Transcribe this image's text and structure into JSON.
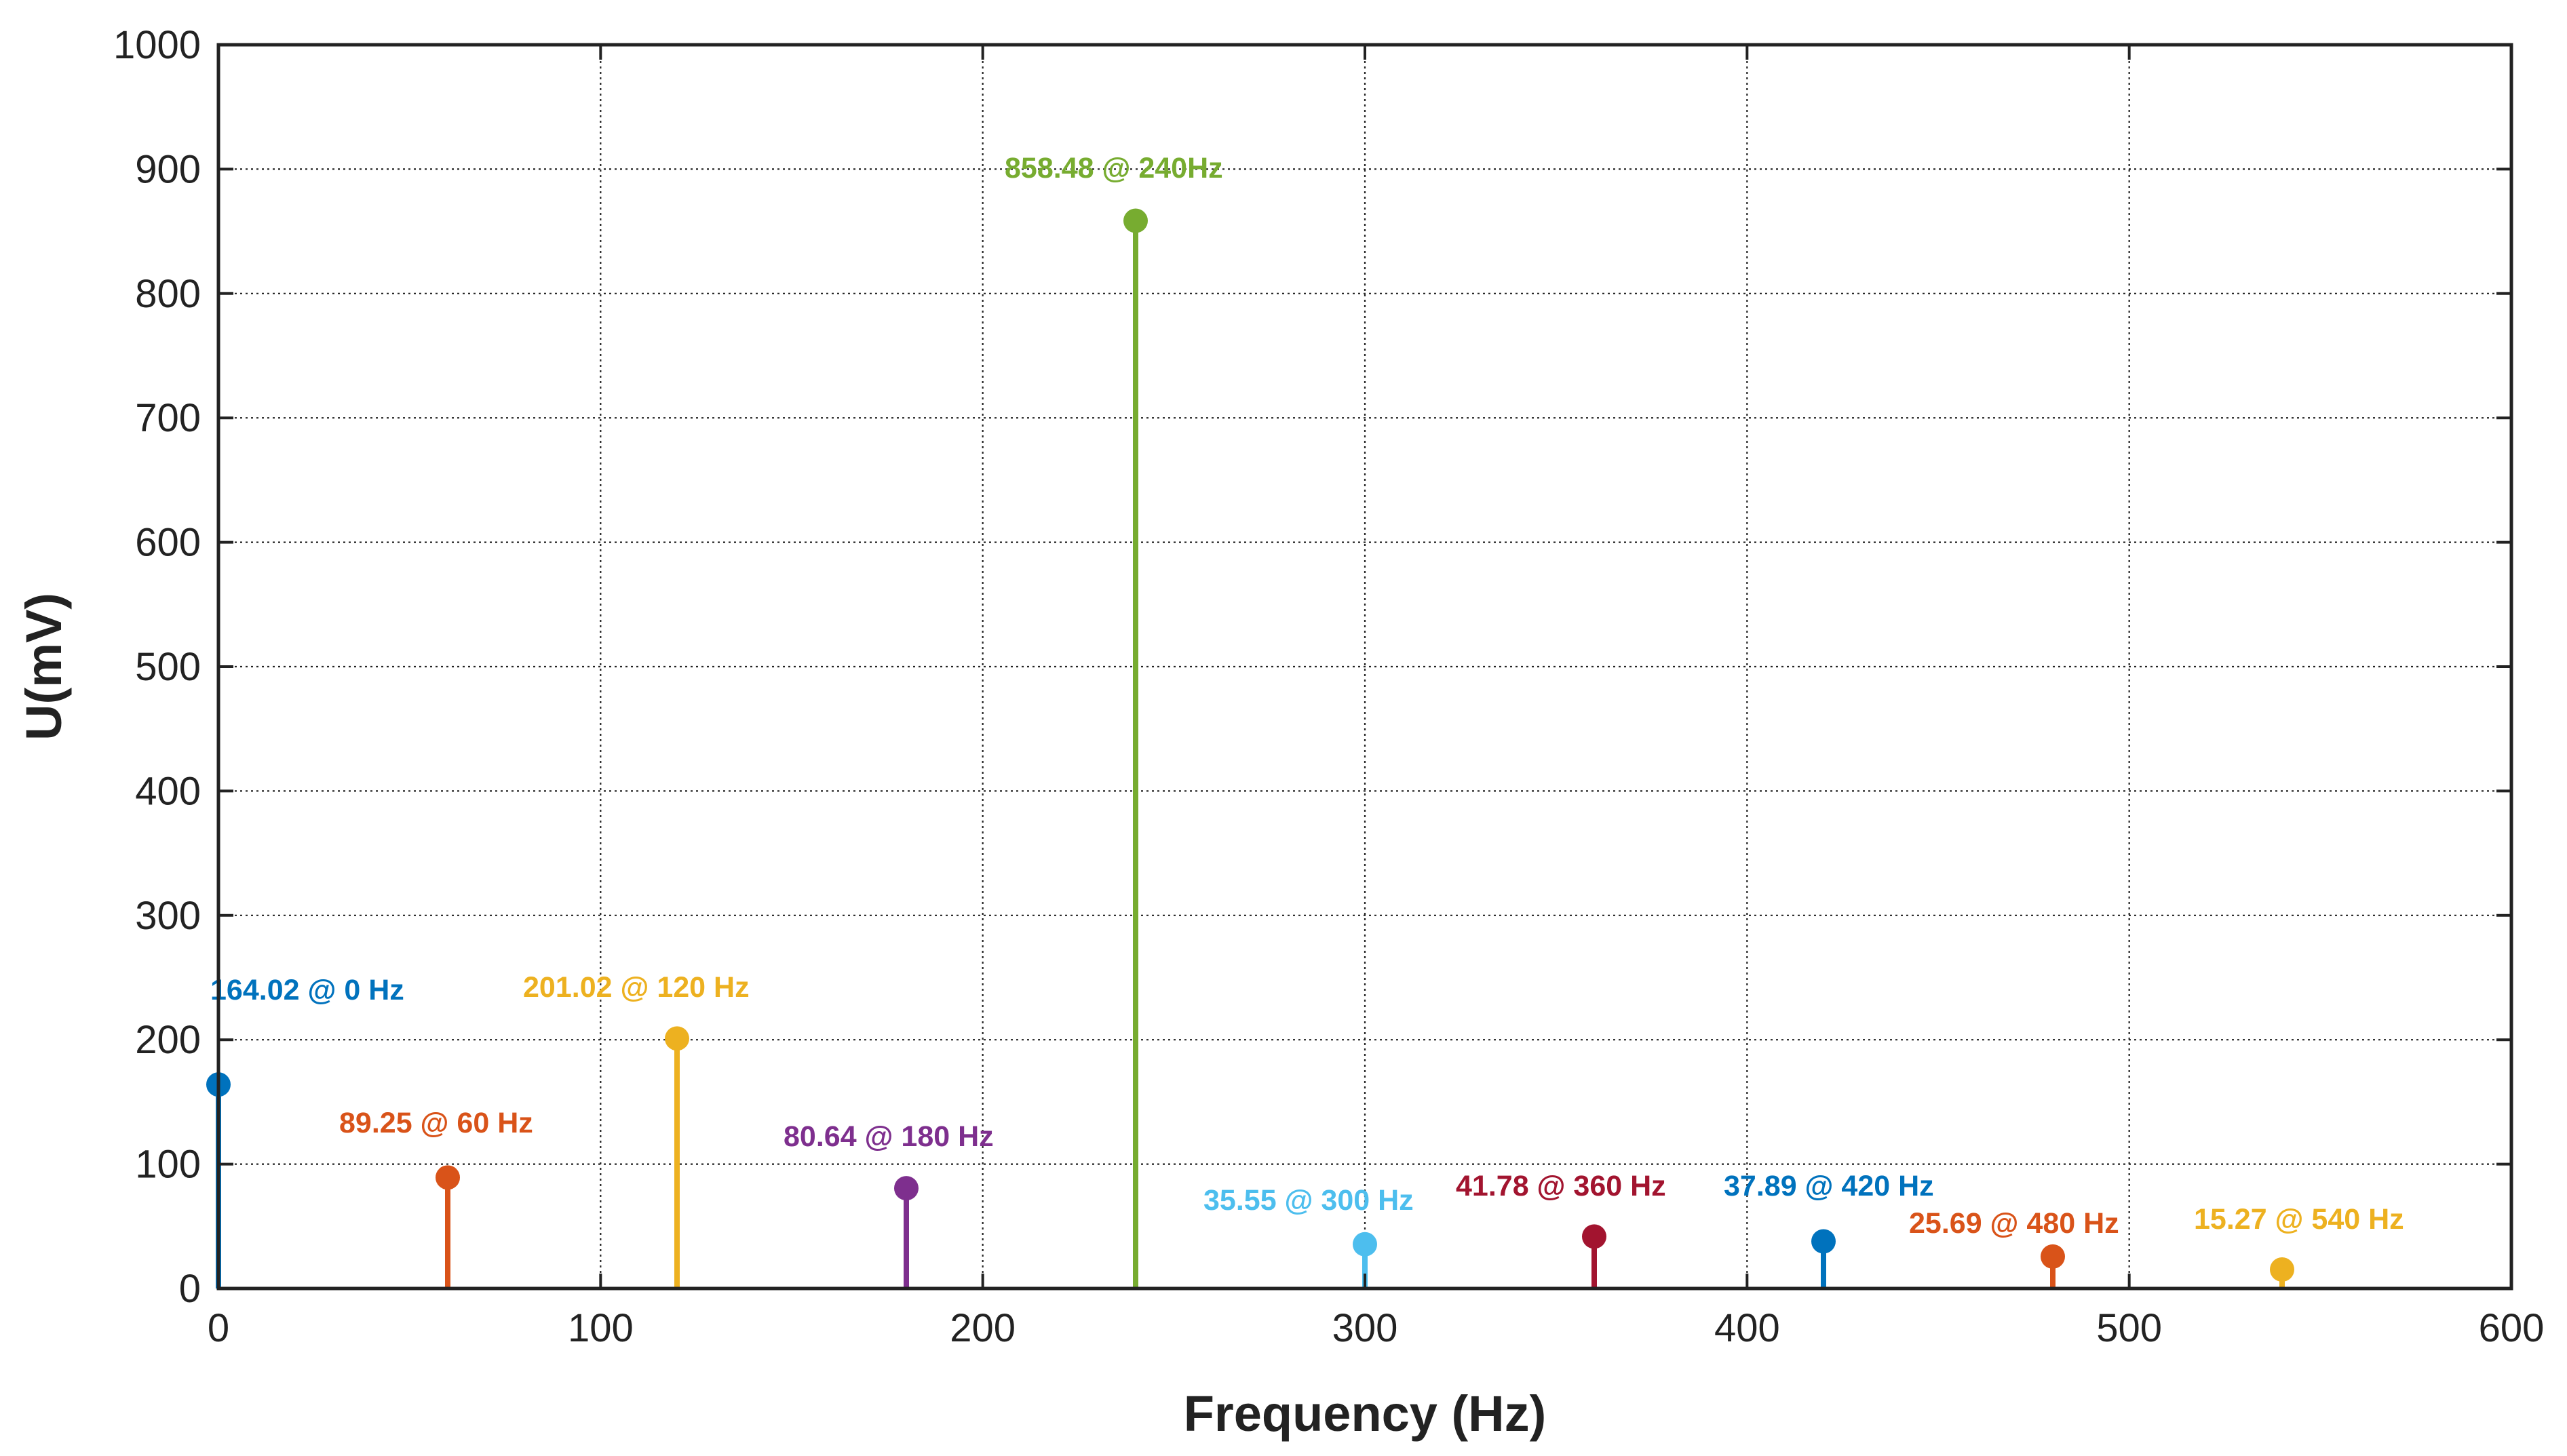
{
  "chart_data": {
    "type": "stem",
    "xlabel": "Frequency (Hz)",
    "ylabel": "U(mV)",
    "xlim": [
      0,
      600
    ],
    "ylim": [
      0,
      1000
    ],
    "xticks": [
      "0",
      "100",
      "200",
      "300",
      "400",
      "500",
      "600"
    ],
    "yticks": [
      "0",
      "100",
      "200",
      "300",
      "400",
      "500",
      "600",
      "700",
      "800",
      "900",
      "1000"
    ],
    "grid": true,
    "points": [
      {
        "x": 0,
        "y": 164.02,
        "label": "164.02  @ 0 Hz",
        "color": "#0072BD"
      },
      {
        "x": 60,
        "y": 89.25,
        "label": "89.25 @ 60 Hz",
        "color": "#D95319"
      },
      {
        "x": 120,
        "y": 201.02,
        "label": "201.02 @ 120 Hz",
        "color": "#EDB120"
      },
      {
        "x": 180,
        "y": 80.64,
        "label": "80.64 @ 180 Hz",
        "color": "#7E2F8E"
      },
      {
        "x": 240,
        "y": 858.48,
        "label": "858.48 @ 240Hz",
        "color": "#77AC30"
      },
      {
        "x": 300,
        "y": 35.55,
        "label": "35.55 @ 300 Hz",
        "color": "#4DBEEE"
      },
      {
        "x": 360,
        "y": 41.78,
        "label": "41.78 @ 360 Hz",
        "color": "#A2142F"
      },
      {
        "x": 420,
        "y": 37.89,
        "label": "37.89 @ 420 Hz",
        "color": "#0072BD"
      },
      {
        "x": 480,
        "y": 25.69,
        "label": "25.69 @ 480 Hz",
        "color": "#D95319"
      },
      {
        "x": 540,
        "y": 15.27,
        "label": "15.27 @ 540 Hz",
        "color": "#EDB120"
      }
    ]
  }
}
